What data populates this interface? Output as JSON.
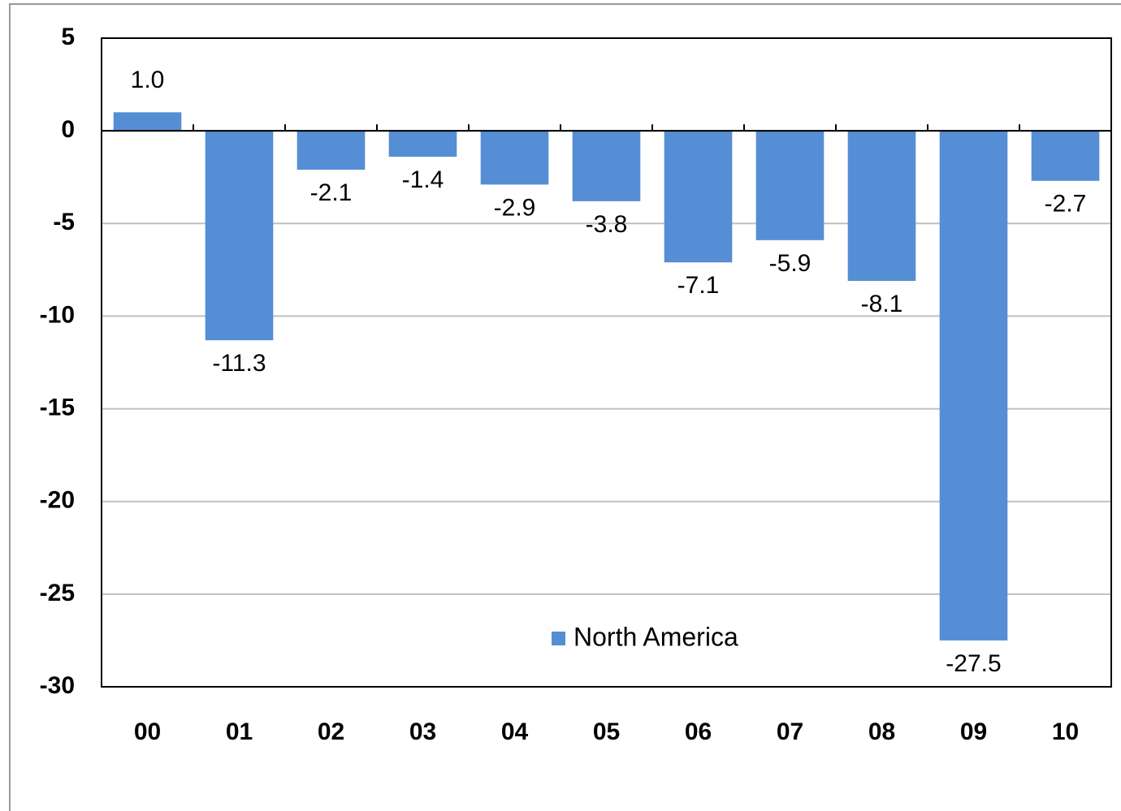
{
  "chart_data": {
    "type": "bar",
    "categories": [
      "00",
      "01",
      "02",
      "03",
      "04",
      "05",
      "06",
      "07",
      "08",
      "09",
      "10"
    ],
    "series": [
      {
        "name": "North America",
        "color": "#558ed5",
        "values": [
          1.0,
          -11.3,
          -2.1,
          -1.4,
          -2.9,
          -3.8,
          -7.1,
          -5.9,
          -8.1,
          -27.5,
          -2.7
        ],
        "value_labels": [
          "1.0",
          "-11.3",
          "-2.1",
          "-1.4",
          "-2.9",
          "-3.8",
          "-7.1",
          "-5.9",
          "-8.1",
          "-27.5",
          "-2.7"
        ]
      }
    ],
    "ylim": [
      -30,
      5
    ],
    "yticks": [
      5,
      0,
      -5,
      -10,
      -15,
      -20,
      -25,
      -30
    ],
    "grid": true,
    "legend": "bottom"
  }
}
